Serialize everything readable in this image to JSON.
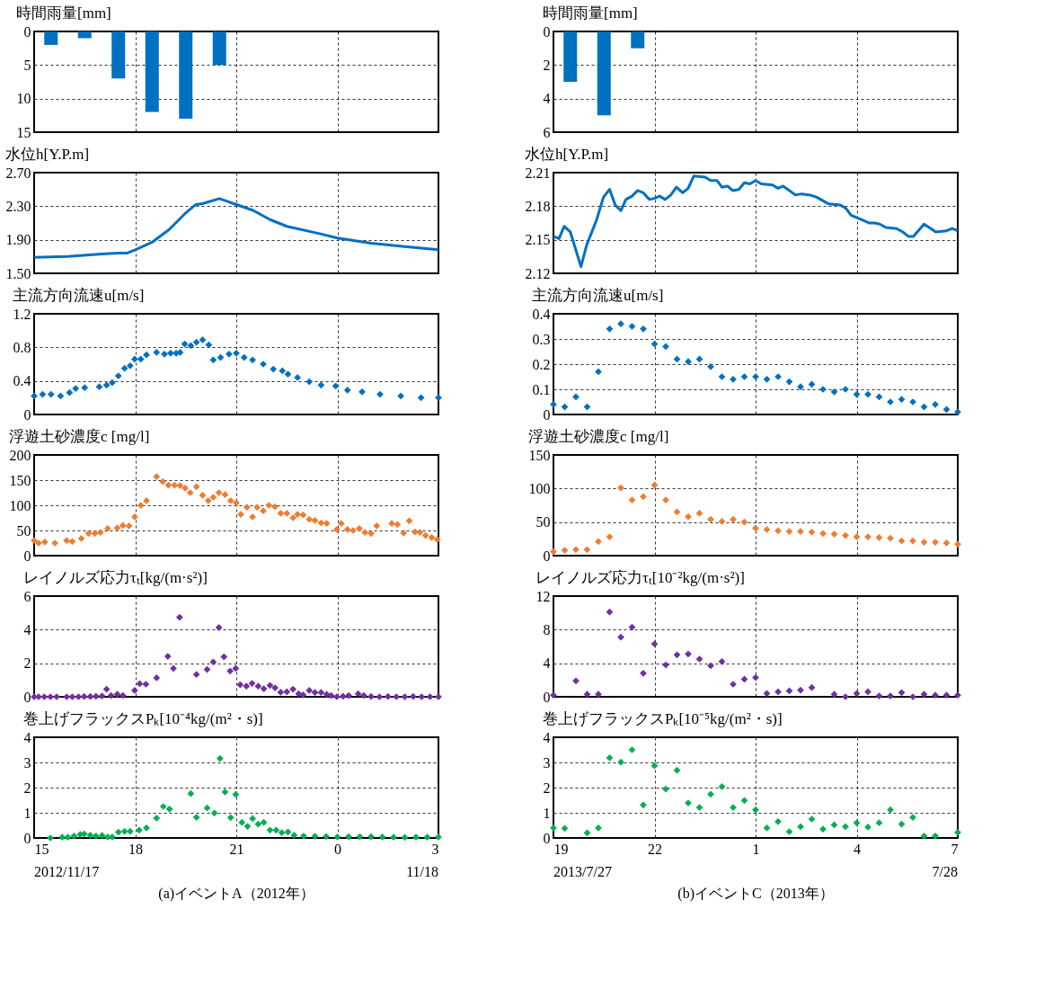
{
  "chart_data": [
    {
      "type": "bar",
      "title": "時間雨量[mm]",
      "x": [
        "2012-11-17T15:30",
        "2012-11-17T16:30",
        "2012-11-17T17:30",
        "2012-11-17T18:30",
        "2012-11-17T19:30",
        "2012-11-17T20:30"
      ],
      "series": [
        {
          "color": "#0070c0",
          "values": [
            2,
            1,
            7,
            12,
            13,
            5
          ]
        }
      ],
      "xlim": [
        "2012-11-17T15:00",
        "2012-11-18T03:00"
      ],
      "xticks": [
        "2012-11-17T15:00",
        "2012-11-17T18:00",
        "2012-11-17T21:00",
        "2012-11-18T00:00",
        "2012-11-18T03:00"
      ],
      "ylim": [
        15,
        0
      ],
      "yticks": [
        0,
        5,
        10,
        15
      ],
      "grid": true,
      "tick_labels": "y"
    },
    {
      "type": "bar",
      "title": "時間雨量[mm]",
      "x": [
        "2013-07-27T19:30",
        "2013-07-27T20:30",
        "2013-07-27T21:30"
      ],
      "series": [
        {
          "color": "#0070c0",
          "values": [
            3,
            5,
            1
          ]
        }
      ],
      "xlim": [
        "2013-07-27T19:00",
        "2013-07-28T07:00"
      ],
      "xticks": [
        "2013-07-27T19:00",
        "2013-07-27T22:00",
        "2013-07-28T01:00",
        "2013-07-28T04:00",
        "2013-07-28T07:00"
      ],
      "ylim": [
        6,
        0
      ],
      "yticks": [
        0,
        2,
        4,
        6
      ],
      "grid": true,
      "tick_labels": "y"
    },
    {
      "type": "line",
      "title": "水位h[Y.P.m]",
      "x": [
        "2012-11-17T15:00",
        "2012-11-17T16:00",
        "2012-11-17T17:00",
        "2012-11-17T17:30",
        "2012-11-17T17:45",
        "2012-11-17T18:00",
        "2012-11-17T18:30",
        "2012-11-17T19:00",
        "2012-11-17T19:30",
        "2012-11-17T19:48",
        "2012-11-17T20:00",
        "2012-11-17T20:30",
        "2012-11-17T21:00",
        "2012-11-17T21:30",
        "2012-11-17T22:00",
        "2012-11-17T22:30",
        "2012-11-17T23:30",
        "2012-11-18T00:00",
        "2012-11-18T01:00",
        "2012-11-18T02:00",
        "2012-11-18T03:00"
      ],
      "series": [
        {
          "color": "#0070c0",
          "values": [
            1.69,
            1.7,
            1.73,
            1.74,
            1.74,
            1.78,
            1.87,
            2.02,
            2.22,
            2.32,
            2.33,
            2.39,
            2.32,
            2.25,
            2.14,
            2.06,
            1.97,
            1.92,
            1.86,
            1.82,
            1.78
          ]
        }
      ],
      "xlim": [
        "2012-11-17T15:00",
        "2012-11-18T03:00"
      ],
      "xticks": [
        "2012-11-17T15:00",
        "2012-11-17T18:00",
        "2012-11-17T21:00",
        "2012-11-18T00:00",
        "2012-11-18T03:00"
      ],
      "ylim": [
        1.5,
        2.7
      ],
      "yticks": [
        {
          "value": 1.5,
          "label": "1.50"
        },
        {
          "value": 1.9,
          "label": "1.90"
        },
        {
          "value": 2.3,
          "label": "2.30"
        },
        {
          "value": 2.7,
          "label": "2.70"
        }
      ],
      "grid": true,
      "tick_labels": "y",
      "line_style": "solid"
    },
    {
      "type": "line",
      "title": "水位h[Y.P.m]",
      "x": [
        "2013-07-27T19:00",
        "2013-07-27T19:10",
        "2013-07-27T19:19",
        "2013-07-27T19:30",
        "2013-07-27T19:49",
        "2013-07-27T19:59",
        "2013-07-27T20:17",
        "2013-07-27T20:29",
        "2013-07-27T20:40",
        "2013-07-27T20:50",
        "2013-07-27T21:00",
        "2013-07-27T21:09",
        "2013-07-27T21:20",
        "2013-07-27T21:30",
        "2013-07-27T21:40",
        "2013-07-27T21:51",
        "2013-07-27T22:00",
        "2013-07-27T22:09",
        "2013-07-27T22:19",
        "2013-07-27T22:29",
        "2013-07-27T22:39",
        "2013-07-27T22:50",
        "2013-07-27T23:00",
        "2013-07-27T23:10",
        "2013-07-27T23:30",
        "2013-07-27T23:40",
        "2013-07-27T23:51",
        "2013-07-28T00:00",
        "2013-07-28T00:10",
        "2013-07-28T00:19",
        "2013-07-28T00:30",
        "2013-07-28T00:40",
        "2013-07-28T00:50",
        "2013-07-28T01:00",
        "2013-07-28T01:10",
        "2013-07-28T01:30",
        "2013-07-28T01:40",
        "2013-07-28T01:49",
        "2013-07-28T02:11",
        "2013-07-28T02:22",
        "2013-07-28T02:37",
        "2013-07-28T02:49",
        "2013-07-28T03:10",
        "2013-07-28T03:31",
        "2013-07-28T03:41",
        "2013-07-28T03:50",
        "2013-07-28T04:09",
        "2013-07-28T04:22",
        "2013-07-28T04:32",
        "2013-07-28T04:41",
        "2013-07-28T04:52",
        "2013-07-28T05:11",
        "2013-07-28T05:22",
        "2013-07-28T05:32",
        "2013-07-28T05:41",
        "2013-07-28T06:00",
        "2013-07-28T06:21",
        "2013-07-28T06:40",
        "2013-07-28T06:50",
        "2013-07-28T07:00"
      ],
      "series": [
        {
          "color": "#0070c0",
          "values": [
            2.153,
            2.151,
            2.162,
            2.157,
            2.126,
            2.145,
            2.168,
            2.188,
            2.195,
            2.181,
            2.176,
            2.186,
            2.189,
            2.194,
            2.192,
            2.186,
            2.187,
            2.189,
            2.186,
            2.19,
            2.197,
            2.192,
            2.196,
            2.207,
            2.206,
            2.203,
            2.203,
            2.197,
            2.198,
            2.194,
            2.195,
            2.201,
            2.2,
            2.203,
            2.2,
            2.199,
            2.196,
            2.198,
            2.19,
            2.191,
            2.19,
            2.188,
            2.182,
            2.181,
            2.178,
            2.172,
            2.168,
            2.165,
            2.165,
            2.164,
            2.161,
            2.16,
            2.157,
            2.153,
            2.153,
            2.164,
            2.157,
            2.158,
            2.16,
            2.158
          ]
        }
      ],
      "xlim": [
        "2013-07-27T19:00",
        "2013-07-28T07:00"
      ],
      "xticks": [
        "2013-07-27T19:00",
        "2013-07-27T22:00",
        "2013-07-28T01:00",
        "2013-07-28T04:00",
        "2013-07-28T07:00"
      ],
      "ylim": [
        2.12,
        2.21
      ],
      "yticks": [
        2.12,
        2.15,
        2.18,
        2.21
      ],
      "grid": true,
      "tick_labels": "y",
      "line_style": "solid"
    },
    {
      "type": "scatter",
      "title": "主流方向流速u[m/s]",
      "x": [
        "2012-11-17T15:00",
        "2012-11-17T15:15",
        "2012-11-17T15:30",
        "2012-11-17T15:47",
        "2012-11-17T16:03",
        "2012-11-17T16:14",
        "2012-11-17T16:30",
        "2012-11-17T16:56",
        "2012-11-17T17:09",
        "2012-11-17T17:19",
        "2012-11-17T17:30",
        "2012-11-17T17:41",
        "2012-11-17T17:51",
        "2012-11-17T17:59",
        "2012-11-17T18:10",
        "2012-11-17T18:20",
        "2012-11-17T18:38",
        "2012-11-17T18:52",
        "2012-11-17T19:03",
        "2012-11-17T19:13",
        "2012-11-17T19:20",
        "2012-11-17T19:28",
        "2012-11-17T19:39",
        "2012-11-17T19:49",
        "2012-11-17T20:00",
        "2012-11-17T20:11",
        "2012-11-17T20:19",
        "2012-11-17T20:32",
        "2012-11-17T20:47",
        "2012-11-17T21:00",
        "2012-11-17T21:14",
        "2012-11-17T21:29",
        "2012-11-17T21:48",
        "2012-11-17T22:06",
        "2012-11-17T22:22",
        "2012-11-17T22:32",
        "2012-11-17T22:49",
        "2012-11-17T23:10",
        "2012-11-17T23:31",
        "2012-11-17T23:57",
        "2012-11-18T00:18",
        "2012-11-18T00:44",
        "2012-11-18T01:16",
        "2012-11-18T01:53",
        "2012-11-18T02:29",
        "2012-11-18T03:00"
      ],
      "series": [
        {
          "color": "#0070c0",
          "values": [
            0.22,
            0.24,
            0.24,
            0.22,
            0.26,
            0.31,
            0.32,
            0.33,
            0.35,
            0.38,
            0.46,
            0.55,
            0.58,
            0.66,
            0.66,
            0.71,
            0.74,
            0.72,
            0.73,
            0.73,
            0.74,
            0.84,
            0.82,
            0.86,
            0.89,
            0.83,
            0.65,
            0.68,
            0.72,
            0.73,
            0.68,
            0.65,
            0.6,
            0.54,
            0.52,
            0.48,
            0.44,
            0.39,
            0.35,
            0.34,
            0.29,
            0.27,
            0.24,
            0.22,
            0.2,
            0.2
          ]
        }
      ],
      "xlim": [
        "2012-11-17T15:00",
        "2012-11-18T03:00"
      ],
      "xticks": [
        "2012-11-17T15:00",
        "2012-11-17T18:00",
        "2012-11-17T21:00",
        "2012-11-18T00:00",
        "2012-11-18T03:00"
      ],
      "ylim": [
        0,
        1.2
      ],
      "yticks": [
        0,
        0.4,
        0.8,
        1.2
      ],
      "grid": true,
      "tick_labels": "y",
      "marker": "diamond"
    },
    {
      "type": "scatter",
      "title": "主流方向流速u[m/s]",
      "x": [
        "2013-07-27T19:00",
        "2013-07-27T19:20",
        "2013-07-27T19:40",
        "2013-07-27T20:00",
        "2013-07-27T20:20",
        "2013-07-27T20:40",
        "2013-07-27T21:00",
        "2013-07-27T21:20",
        "2013-07-27T21:40",
        "2013-07-27T22:00",
        "2013-07-27T22:20",
        "2013-07-27T22:40",
        "2013-07-27T23:00",
        "2013-07-27T23:20",
        "2013-07-27T23:40",
        "2013-07-28T00:00",
        "2013-07-28T00:20",
        "2013-07-28T00:40",
        "2013-07-28T01:00",
        "2013-07-28T01:20",
        "2013-07-28T01:40",
        "2013-07-28T02:00",
        "2013-07-28T02:20",
        "2013-07-28T02:40",
        "2013-07-28T03:00",
        "2013-07-28T03:20",
        "2013-07-28T03:40",
        "2013-07-28T04:00",
        "2013-07-28T04:20",
        "2013-07-28T04:40",
        "2013-07-28T05:00",
        "2013-07-28T05:20",
        "2013-07-28T05:40",
        "2013-07-28T06:00",
        "2013-07-28T06:20",
        "2013-07-28T06:40",
        "2013-07-28T07:00"
      ],
      "series": [
        {
          "color": "#0070c0",
          "values": [
            0.04,
            0.03,
            0.07,
            0.03,
            0.17,
            0.34,
            0.36,
            0.35,
            0.34,
            0.28,
            0.27,
            0.22,
            0.21,
            0.22,
            0.19,
            0.15,
            0.14,
            0.15,
            0.15,
            0.14,
            0.15,
            0.13,
            0.11,
            0.12,
            0.1,
            0.09,
            0.1,
            0.08,
            0.08,
            0.07,
            0.05,
            0.06,
            0.05,
            0.03,
            0.04,
            0.02,
            0.01
          ]
        }
      ],
      "xlim": [
        "2013-07-27T19:00",
        "2013-07-28T07:00"
      ],
      "xticks": [
        "2013-07-27T19:00",
        "2013-07-27T22:00",
        "2013-07-28T01:00",
        "2013-07-28T04:00",
        "2013-07-28T07:00"
      ],
      "ylim": [
        0,
        0.4
      ],
      "yticks": [
        0,
        0.1,
        0.2,
        0.3,
        0.4
      ],
      "grid": true,
      "tick_labels": "y",
      "marker": "diamond"
    },
    {
      "type": "scatter",
      "title": "浮遊土砂濃度c [mg/l]",
      "x": [
        "2012-11-17T15:00",
        "2012-11-17T15:08",
        "2012-11-17T15:19",
        "2012-11-17T15:37",
        "2012-11-17T15:58",
        "2012-11-17T16:08",
        "2012-11-17T16:24",
        "2012-11-17T16:37",
        "2012-11-17T16:48",
        "2012-11-17T16:58",
        "2012-11-17T17:11",
        "2012-11-17T17:28",
        "2012-11-17T17:38",
        "2012-11-17T17:49",
        "2012-11-17T17:59",
        "2012-11-17T18:10",
        "2012-11-17T18:20",
        "2012-11-17T18:38",
        "2012-11-17T18:49",
        "2012-11-17T18:59",
        "2012-11-17T19:10",
        "2012-11-17T19:20",
        "2012-11-17T19:29",
        "2012-11-17T19:38",
        "2012-11-17T19:49",
        "2012-11-17T20:00",
        "2012-11-17T20:10",
        "2012-11-17T20:19",
        "2012-11-17T20:29",
        "2012-11-17T20:40",
        "2012-11-17T20:50",
        "2012-11-17T21:00",
        "2012-11-17T21:08",
        "2012-11-17T21:19",
        "2012-11-17T21:29",
        "2012-11-17T21:37",
        "2012-11-17T21:48",
        "2012-11-17T21:58",
        "2012-11-17T22:09",
        "2012-11-17T22:19",
        "2012-11-17T22:30",
        "2012-11-17T22:41",
        "2012-11-17T22:49",
        "2012-11-17T22:59",
        "2012-11-17T23:10",
        "2012-11-17T23:20",
        "2012-11-17T23:31",
        "2012-11-17T23:41",
        "2012-11-17T23:59",
        "2012-11-18T00:07",
        "2012-11-18T00:18",
        "2012-11-18T00:28",
        "2012-11-18T00:39",
        "2012-11-18T00:49",
        "2012-11-18T01:00",
        "2012-11-18T01:10",
        "2012-11-18T01:37",
        "2012-11-18T01:47",
        "2012-11-18T01:58",
        "2012-11-18T02:08",
        "2012-11-18T02:18",
        "2012-11-18T02:27",
        "2012-11-18T02:37",
        "2012-11-18T02:48",
        "2012-11-18T02:58"
      ],
      "series": [
        {
          "color": "#ed7d31",
          "values": [
            30,
            25,
            27,
            25,
            30,
            28,
            34,
            44,
            44,
            46,
            54,
            55,
            60,
            59,
            77,
            100,
            109,
            157,
            147,
            140,
            140,
            139,
            134,
            125,
            137,
            120,
            109,
            116,
            125,
            121,
            109,
            105,
            82,
            96,
            77,
            96,
            89,
            100,
            97,
            84,
            84,
            75,
            82,
            81,
            72,
            70,
            65,
            64,
            52,
            64,
            52,
            50,
            54,
            46,
            44,
            59,
            64,
            62,
            45,
            69,
            47,
            46,
            40,
            36,
            32
          ]
        }
      ],
      "xlim": [
        "2012-11-17T15:00",
        "2012-11-18T03:00"
      ],
      "xticks": [
        "2012-11-17T15:00",
        "2012-11-17T18:00",
        "2012-11-17T21:00",
        "2012-11-18T00:00",
        "2012-11-18T03:00"
      ],
      "ylim": [
        0,
        200
      ],
      "yticks": [
        0,
        50,
        100,
        150,
        200
      ],
      "grid": true,
      "tick_labels": "y",
      "marker": "diamond"
    },
    {
      "type": "scatter",
      "title": "浮遊土砂濃度c [mg/l]",
      "x": [
        "2013-07-27T19:00",
        "2013-07-27T19:20",
        "2013-07-27T19:40",
        "2013-07-27T20:00",
        "2013-07-27T20:20",
        "2013-07-27T20:40",
        "2013-07-27T21:00",
        "2013-07-27T21:20",
        "2013-07-27T21:40",
        "2013-07-27T22:00",
        "2013-07-27T22:20",
        "2013-07-27T22:40",
        "2013-07-27T23:00",
        "2013-07-27T23:20",
        "2013-07-27T23:40",
        "2013-07-28T00:00",
        "2013-07-28T00:20",
        "2013-07-28T00:40",
        "2013-07-28T01:00",
        "2013-07-28T01:20",
        "2013-07-28T01:40",
        "2013-07-28T02:00",
        "2013-07-28T02:20",
        "2013-07-28T02:40",
        "2013-07-28T03:00",
        "2013-07-28T03:20",
        "2013-07-28T03:40",
        "2013-07-28T04:00",
        "2013-07-28T04:20",
        "2013-07-28T04:40",
        "2013-07-28T05:00",
        "2013-07-28T05:20",
        "2013-07-28T05:40",
        "2013-07-28T06:00",
        "2013-07-28T06:20",
        "2013-07-28T06:40",
        "2013-07-28T07:00"
      ],
      "series": [
        {
          "color": "#ed7d31",
          "values": [
            6,
            8,
            9,
            9,
            21,
            28,
            101,
            83,
            88,
            105,
            83,
            65,
            58,
            63,
            54,
            51,
            54,
            50,
            41,
            39,
            37,
            36,
            36,
            35,
            33,
            32,
            30,
            28,
            28,
            27,
            26,
            22,
            22,
            20,
            20,
            19,
            17
          ]
        }
      ],
      "xlim": [
        "2013-07-27T19:00",
        "2013-07-28T07:00"
      ],
      "xticks": [
        "2013-07-27T19:00",
        "2013-07-27T22:00",
        "2013-07-28T01:00",
        "2013-07-28T04:00",
        "2013-07-28T07:00"
      ],
      "ylim": [
        0,
        150
      ],
      "yticks": [
        0,
        50,
        100,
        150
      ],
      "grid": true,
      "tick_labels": "y",
      "marker": "diamond"
    },
    {
      "type": "scatter",
      "title": "レイノルズ応力τₜ[kg/(m·s²)]",
      "x": [
        "2012-11-17T15:00",
        "2012-11-17T15:08",
        "2012-11-17T15:18",
        "2012-11-17T15:29",
        "2012-11-17T15:40",
        "2012-11-17T15:58",
        "2012-11-17T16:08",
        "2012-11-17T16:19",
        "2012-11-17T16:29",
        "2012-11-17T16:40",
        "2012-11-17T16:50",
        "2012-11-17T17:01",
        "2012-11-17T17:09",
        "2012-11-17T17:17",
        "2012-11-17T17:28",
        "2012-11-17T17:38",
        "2012-11-17T17:59",
        "2012-11-17T18:08",
        "2012-11-17T18:19",
        "2012-11-17T18:38",
        "2012-11-17T18:58",
        "2012-11-17T19:08",
        "2012-11-17T19:19",
        "2012-11-17T19:49",
        "2012-11-17T20:08",
        "2012-11-17T20:19",
        "2012-11-17T20:29",
        "2012-11-17T20:38",
        "2012-11-17T20:49",
        "2012-11-17T20:59",
        "2012-11-17T21:07",
        "2012-11-17T21:18",
        "2012-11-17T21:28",
        "2012-11-17T21:39",
        "2012-11-17T21:49",
        "2012-11-17T22:00",
        "2012-11-17T22:09",
        "2012-11-17T22:19",
        "2012-11-17T22:30",
        "2012-11-17T22:41",
        "2012-11-17T22:51",
        "2012-11-17T22:59",
        "2012-11-17T23:10",
        "2012-11-17T23:20",
        "2012-11-17T23:31",
        "2012-11-17T23:41",
        "2012-11-17T23:49",
        "2012-11-17T23:59",
        "2012-11-18T00:10",
        "2012-11-18T00:20",
        "2012-11-18T00:37",
        "2012-11-18T00:47",
        "2012-11-18T01:00",
        "2012-11-18T01:15",
        "2012-11-18T01:30",
        "2012-11-18T01:45",
        "2012-11-18T02:00",
        "2012-11-18T02:15",
        "2012-11-18T02:30",
        "2012-11-18T02:45",
        "2012-11-18T03:00"
      ],
      "series": [
        {
          "color": "#7030a0",
          "values": [
            0,
            0,
            0,
            0,
            0,
            0,
            0,
            0,
            0.02,
            0.02,
            0.03,
            0.05,
            0.45,
            0.08,
            0.15,
            0.08,
            0.38,
            0.78,
            0.75,
            1.13,
            2.41,
            1.69,
            4.74,
            1.33,
            1.63,
            2.07,
            4.13,
            2.38,
            1.54,
            1.69,
            0.72,
            0.63,
            0.8,
            0.63,
            0.48,
            0.68,
            0.53,
            0.27,
            0.3,
            0.45,
            0.18,
            0.12,
            0.38,
            0.26,
            0.26,
            0.15,
            0.08,
            0,
            0.03,
            0.08,
            0.18,
            0.08,
            0.02,
            0,
            0.02,
            0,
            0,
            0.02,
            0,
            0,
            0
          ]
        }
      ],
      "xlim": [
        "2012-11-17T15:00",
        "2012-11-18T03:00"
      ],
      "xticks": [
        "2012-11-17T15:00",
        "2012-11-17T18:00",
        "2012-11-17T21:00",
        "2012-11-18T00:00",
        "2012-11-18T03:00"
      ],
      "ylim": [
        0,
        6
      ],
      "yticks": [
        0,
        2,
        4,
        6
      ],
      "grid": true,
      "tick_labels": "y",
      "marker": "diamond"
    },
    {
      "type": "scatter",
      "title": "レイノルズ応力τₜ[10⁻²kg/(m·s²)]",
      "x": [
        "2013-07-27T19:00",
        "2013-07-27T19:20",
        "2013-07-27T19:40",
        "2013-07-27T20:00",
        "2013-07-27T20:20",
        "2013-07-27T20:40",
        "2013-07-27T21:00",
        "2013-07-27T21:20",
        "2013-07-27T21:40",
        "2013-07-27T22:00",
        "2013-07-27T22:20",
        "2013-07-27T22:40",
        "2013-07-27T23:00",
        "2013-07-27T23:20",
        "2013-07-27T23:40",
        "2013-07-28T00:00",
        "2013-07-28T00:20",
        "2013-07-28T00:40",
        "2013-07-28T01:00",
        "2013-07-28T01:20",
        "2013-07-28T01:40",
        "2013-07-28T02:00",
        "2013-07-28T02:20",
        "2013-07-28T02:40",
        "2013-07-28T03:00",
        "2013-07-28T03:20",
        "2013-07-28T03:40",
        "2013-07-28T04:00",
        "2013-07-28T04:20",
        "2013-07-28T04:40",
        "2013-07-28T05:00",
        "2013-07-28T05:20",
        "2013-07-28T05:40",
        "2013-07-28T06:00",
        "2013-07-28T06:20",
        "2013-07-28T06:40",
        "2013-07-28T07:00"
      ],
      "series": [
        {
          "color": "#7030a0",
          "values": [
            0.2,
            null,
            1.9,
            0.3,
            0.3,
            10.1,
            7.1,
            8.3,
            2.8,
            6.3,
            3.8,
            5.0,
            5.1,
            4.5,
            3.7,
            4.2,
            1.5,
            2.1,
            2.3,
            0.4,
            0.6,
            0.7,
            0.8,
            1.1,
            null,
            0.3,
            0,
            0.4,
            0.6,
            0.1,
            0.1,
            0.5,
            0,
            0.3,
            0.2,
            0.2,
            0.2
          ]
        }
      ],
      "xlim": [
        "2013-07-27T19:00",
        "2013-07-28T07:00"
      ],
      "xticks": [
        "2013-07-27T19:00",
        "2013-07-27T22:00",
        "2013-07-28T01:00",
        "2013-07-28T04:00",
        "2013-07-28T07:00"
      ],
      "ylim": [
        0,
        12
      ],
      "yticks": [
        0,
        4,
        8,
        12
      ],
      "grid": true,
      "tick_labels": "y",
      "marker": "diamond"
    },
    {
      "type": "scatter",
      "title": "巻上げフラックスPₖ[10⁻⁴kg/(m²・s)]",
      "x": [
        "2012-11-17T15:29",
        "2012-11-17T15:50",
        "2012-11-17T16:00",
        "2012-11-17T16:11",
        "2012-11-17T16:22",
        "2012-11-17T16:29",
        "2012-11-17T16:40",
        "2012-11-17T16:50",
        "2012-11-17T17:01",
        "2012-11-17T17:11",
        "2012-11-17T17:19",
        "2012-11-17T17:30",
        "2012-11-17T17:41",
        "2012-11-17T17:51",
        "2012-11-17T18:07",
        "2012-11-17T18:20",
        "2012-11-17T18:38",
        "2012-11-17T18:50",
        "2012-11-17T19:01",
        "2012-11-17T19:39",
        "2012-11-17T19:49",
        "2012-11-17T20:08",
        "2012-11-17T20:21",
        "2012-11-17T20:31",
        "2012-11-17T20:40",
        "2012-11-17T20:50",
        "2012-11-17T20:59",
        "2012-11-17T21:10",
        "2012-11-17T21:20",
        "2012-11-17T21:29",
        "2012-11-17T21:39",
        "2012-11-17T21:49",
        "2012-11-17T22:00",
        "2012-11-17T22:11",
        "2012-11-17T22:21",
        "2012-11-17T22:32",
        "2012-11-17T22:43",
        "2012-11-17T23:00",
        "2012-11-17T23:20",
        "2012-11-17T23:40",
        "2012-11-18T00:00",
        "2012-11-18T00:20",
        "2012-11-18T00:40",
        "2012-11-18T01:00",
        "2012-11-18T01:20",
        "2012-11-18T01:40",
        "2012-11-18T02:00",
        "2012-11-18T02:20",
        "2012-11-18T02:40",
        "2012-11-18T03:00"
      ],
      "series": [
        {
          "color": "#00b050",
          "values": [
            0,
            0.03,
            0.03,
            0.08,
            0.14,
            0.16,
            0.11,
            0.08,
            0.1,
            0.04,
            0.04,
            0.23,
            0.26,
            0.26,
            0.31,
            0.4,
            0.79,
            1.25,
            1.15,
            1.76,
            0.82,
            1.19,
            0.99,
            3.16,
            1.83,
            0.81,
            1.73,
            0.62,
            0.46,
            0.77,
            0.55,
            0.62,
            0.31,
            0.31,
            0.21,
            0.24,
            0.11,
            0.08,
            0.07,
            0.06,
            0.04,
            0.05,
            0.05,
            0.05,
            0.04,
            0.03,
            0.02,
            0.03,
            0.03,
            0.04
          ]
        }
      ],
      "xlim": [
        "2012-11-17T15:00",
        "2012-11-18T03:00"
      ],
      "xticks": [
        {
          "value": "2012-11-17T15:00",
          "label": "15"
        },
        {
          "value": "2012-11-17T18:00",
          "label": "18"
        },
        {
          "value": "2012-11-17T21:00",
          "label": "21"
        },
        {
          "value": "2012-11-18T00:00",
          "label": "0"
        },
        {
          "value": "2012-11-18T03:00",
          "label": "3"
        }
      ],
      "ylim": [
        0,
        4
      ],
      "yticks": [
        0,
        1,
        2,
        3,
        4
      ],
      "grid": true,
      "marker": "diamond",
      "annotations": [
        "2012/11/17",
        "11/18",
        "(a)イベントA（2012年）"
      ]
    },
    {
      "type": "scatter",
      "title": "巻上げフラックスPₖ[10⁻⁵kg/(m²・s)]",
      "x": [
        "2013-07-27T19:00",
        "2013-07-27T19:20",
        "2013-07-27T19:40",
        "2013-07-27T20:00",
        "2013-07-27T20:20",
        "2013-07-27T20:40",
        "2013-07-27T21:00",
        "2013-07-27T21:20",
        "2013-07-27T21:40",
        "2013-07-27T22:00",
        "2013-07-27T22:20",
        "2013-07-27T22:40",
        "2013-07-27T23:00",
        "2013-07-27T23:20",
        "2013-07-27T23:40",
        "2013-07-28T00:00",
        "2013-07-28T00:20",
        "2013-07-28T00:40",
        "2013-07-28T01:00",
        "2013-07-28T01:20",
        "2013-07-28T01:40",
        "2013-07-28T02:00",
        "2013-07-28T02:20",
        "2013-07-28T02:40",
        "2013-07-28T03:00",
        "2013-07-28T03:20",
        "2013-07-28T03:40",
        "2013-07-28T04:00",
        "2013-07-28T04:20",
        "2013-07-28T04:40",
        "2013-07-28T05:00",
        "2013-07-28T05:20",
        "2013-07-28T05:40",
        "2013-07-28T06:00",
        "2013-07-28T06:20",
        "2013-07-28T06:40",
        "2013-07-28T07:00"
      ],
      "series": [
        {
          "color": "#00b050",
          "values": [
            0.4,
            0.38,
            null,
            0.2,
            0.4,
            3.18,
            3.01,
            3.5,
            1.31,
            2.87,
            1.94,
            2.69,
            1.39,
            1.21,
            1.74,
            2.04,
            1.21,
            1.49,
            1.12,
            0.4,
            0.65,
            0.25,
            0.45,
            0.75,
            0.35,
            0.52,
            0.45,
            0.6,
            0.43,
            0.6,
            1.12,
            0.55,
            0.82,
            0.08,
            0.08,
            null,
            0.22
          ]
        }
      ],
      "xlim": [
        "2013-07-27T19:00",
        "2013-07-28T07:00"
      ],
      "xticks": [
        {
          "value": "2013-07-27T19:00",
          "label": "19"
        },
        {
          "value": "2013-07-27T22:00",
          "label": "22"
        },
        {
          "value": "2013-07-28T01:00",
          "label": "1"
        },
        {
          "value": "2013-07-28T04:00",
          "label": "4"
        },
        {
          "value": "2013-07-28T07:00",
          "label": "7"
        }
      ],
      "ylim": [
        0,
        4
      ],
      "yticks": [
        0,
        1,
        2,
        3,
        4
      ],
      "grid": true,
      "marker": "diamond",
      "annotations": [
        "2013/7/27",
        "7/28",
        "(b)イベントC（2013年）"
      ]
    }
  ]
}
